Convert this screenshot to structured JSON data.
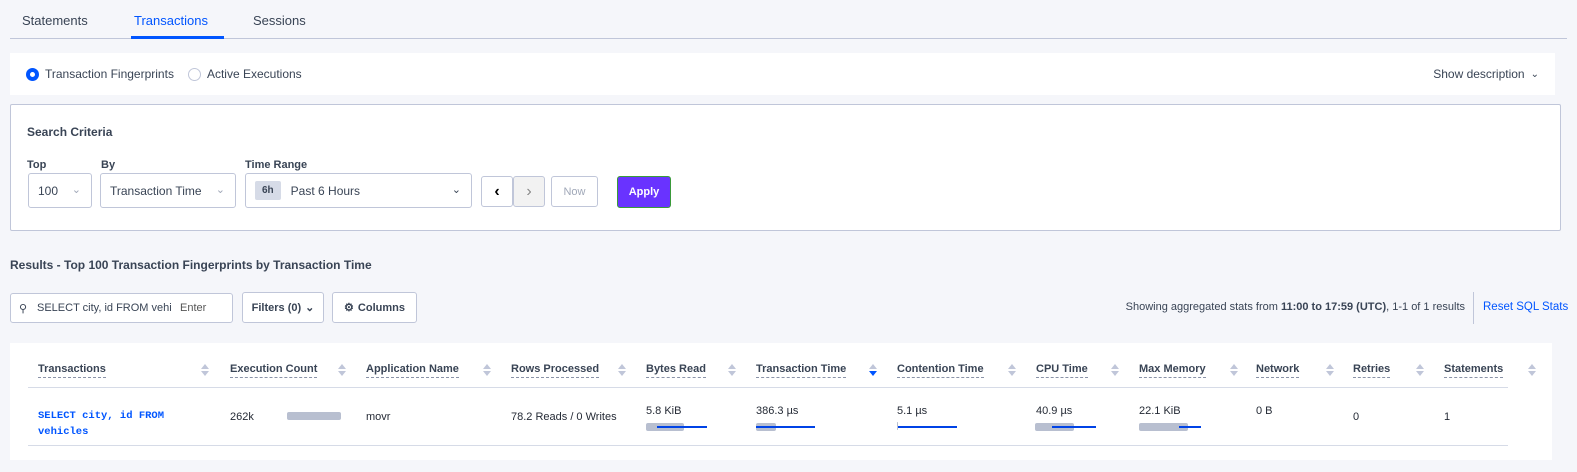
{
  "tabs": [
    {
      "label": "Statements"
    },
    {
      "label": "Transactions",
      "active": true
    },
    {
      "label": "Sessions"
    }
  ],
  "view": {
    "options": [
      {
        "label": "Transaction Fingerprints",
        "selected": true
      },
      {
        "label": "Active Executions",
        "selected": false
      }
    ],
    "show_description": "Show description"
  },
  "search_criteria": {
    "title": "Search Criteria",
    "top_label": "Top",
    "top_value": "100",
    "by_label": "By",
    "by_value": "Transaction Time",
    "time_range_label": "Time Range",
    "time_badge": "6h",
    "time_value": "Past 6 Hours",
    "now_label": "Now",
    "apply_label": "Apply"
  },
  "results": {
    "title": "Results - Top 100 Transaction Fingerprints by Transaction Time",
    "search_value": "SELECT city, id FROM vehicles W",
    "search_enter": "Enter",
    "filters_label": "Filters (0)",
    "columns_label": "Columns",
    "summary_prefix": "Showing aggregated stats from ",
    "summary_range": "11:00 to 17:59 (UTC)",
    "summary_suffix": ", 1-1 of 1 results",
    "reset_label": "Reset SQL Stats"
  },
  "accent_color": "#0055ff",
  "apply_color": "#6933ff",
  "table": {
    "headers": [
      "Transactions",
      "Execution Count",
      "Application Name",
      "Rows Processed",
      "Bytes Read",
      "Transaction Time",
      "Contention Time",
      "CPU Time",
      "Max Memory",
      "Network",
      "Retries",
      "Statements"
    ],
    "sorted_column": "Transaction Time",
    "sort_direction": "descending",
    "rows": [
      {
        "transaction": "SELECT city, id FROM vehicles",
        "execution_count": "262k",
        "execution_bar": 1.0,
        "application": "movr",
        "rows_processed": "78.2 Reads / 0 Writes",
        "bytes_read": "5.8 KiB",
        "transaction_time": "386.3 µs",
        "contention_time": "5.1 µs",
        "cpu_time": "40.9 µs",
        "max_memory": "22.1 KiB",
        "network": "0 B",
        "retries": "0",
        "statements": "1"
      }
    ]
  }
}
